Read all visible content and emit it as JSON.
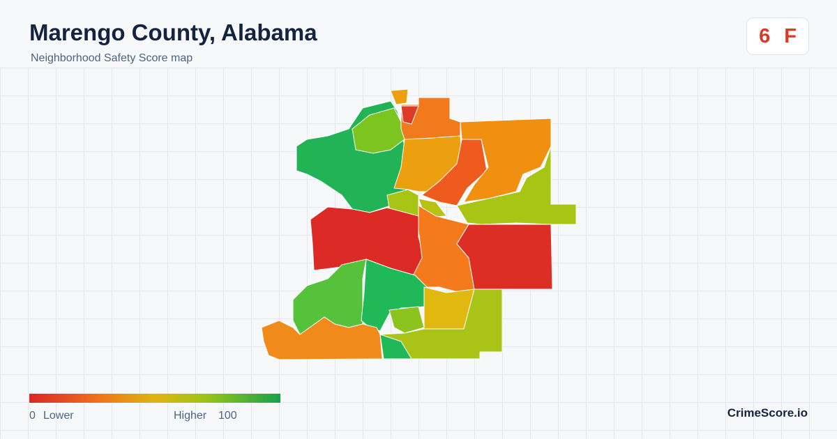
{
  "header": {
    "title": "Marengo County, Alabama",
    "subtitle": "Neighborhood Safety Score map"
  },
  "score": {
    "value": 6,
    "grade": "F"
  },
  "legend": {
    "min": 0,
    "min_label": "Lower",
    "max_label": "Higher",
    "max": 100
  },
  "footer": {
    "brand": "CrimeScore.io"
  }
}
